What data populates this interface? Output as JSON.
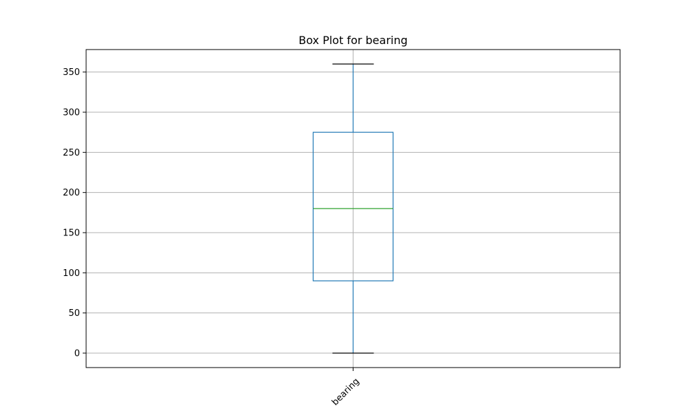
{
  "chart_data": {
    "type": "box",
    "title": "Box Plot for bearing",
    "xlabel": "",
    "ylabel": "",
    "categories": [
      "bearing"
    ],
    "boxes": [
      {
        "category": "bearing",
        "min": 0,
        "q1": 90,
        "median": 180,
        "q3": 275,
        "max": 360
      }
    ],
    "ylim": [
      -18,
      378
    ],
    "yticks": [
      0,
      50,
      100,
      150,
      200,
      250,
      300,
      350
    ],
    "grid": true,
    "colors": {
      "box": "#1f77b4",
      "median": "#2ca02c",
      "whisker_cap": "#000000",
      "grid": "#b0b0b0"
    }
  }
}
